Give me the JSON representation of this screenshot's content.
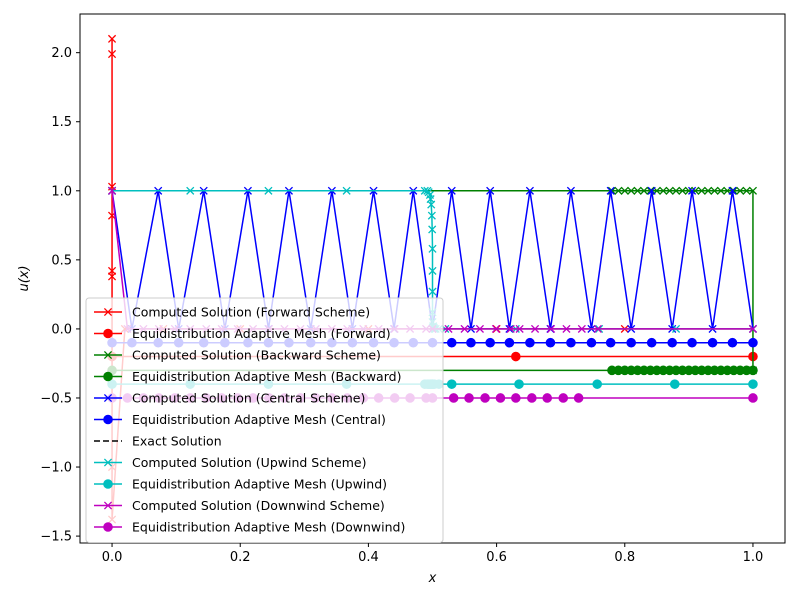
{
  "chart_data": {
    "type": "line",
    "xlabel": "x",
    "ylabel": "u(x)",
    "xlim": [
      -0.05,
      1.05
    ],
    "ylim": [
      -1.55,
      2.28
    ],
    "xticks": [
      0.0,
      0.2,
      0.4,
      0.6,
      0.8,
      1.0
    ],
    "xtick_labels": [
      "0.0",
      "0.2",
      "0.4",
      "0.6",
      "0.8",
      "1.0"
    ],
    "yticks": [
      -1.5,
      -1.0,
      -0.5,
      0.0,
      0.5,
      1.0,
      1.5,
      2.0
    ],
    "ytick_labels": [
      "−1.5",
      "−1.0",
      "−0.5",
      "0.0",
      "0.5",
      "1.0",
      "1.5",
      "2.0"
    ],
    "grid": false,
    "legend_position": "lower-left",
    "series": [
      {
        "name": "Computed Solution (Forward Scheme)",
        "color": "#ff0000",
        "marker": "x",
        "linestyle": "solid",
        "x": [
          0,
          0,
          0,
          0,
          0,
          0,
          0,
          0,
          0.02,
          0.08,
          0.2,
          0.4,
          0.6,
          0.8,
          1.0
        ],
        "y": [
          2.1,
          1.99,
          1.03,
          0.82,
          0.42,
          0.38,
          -1.0,
          -1.38,
          0.0,
          0.0,
          0.0,
          0.0,
          0.0,
          0.0,
          0.0
        ]
      },
      {
        "name": "Equidistribution Adaptive Mesh (Forward)",
        "color": "#ff0000",
        "marker": "o",
        "linestyle": "solid",
        "x": [
          0,
          0.63,
          1.0
        ],
        "y": [
          -0.2,
          -0.2,
          -0.2
        ]
      },
      {
        "name": "Computed Solution (Backward Scheme)",
        "color": "#008000",
        "marker": "x",
        "linestyle": "solid",
        "x": [
          0,
          0.78,
          0.79,
          0.8,
          0.81,
          0.82,
          0.83,
          0.84,
          0.85,
          0.86,
          0.87,
          0.88,
          0.89,
          0.9,
          0.91,
          0.92,
          0.93,
          0.94,
          0.95,
          0.96,
          0.97,
          0.98,
          0.99,
          1.0,
          1.0
        ],
        "y": [
          1.0,
          1.0,
          1.0,
          1.0,
          1.0,
          1.0,
          1.0,
          1.0,
          1.0,
          1.0,
          1.0,
          1.0,
          1.0,
          1.0,
          1.0,
          1.0,
          1.0,
          1.0,
          1.0,
          1.0,
          1.0,
          1.0,
          1.0,
          1.0,
          -0.3
        ]
      },
      {
        "name": "Equidistribution Adaptive Mesh (Backward)",
        "color": "#008000",
        "marker": "o",
        "linestyle": "solid",
        "x": [
          0,
          0.78,
          0.79,
          0.8,
          0.81,
          0.82,
          0.83,
          0.84,
          0.85,
          0.86,
          0.87,
          0.88,
          0.89,
          0.9,
          0.91,
          0.92,
          0.93,
          0.94,
          0.95,
          0.96,
          0.97,
          0.98,
          0.99,
          1.0
        ],
        "y": [
          -0.3,
          -0.3,
          -0.3,
          -0.3,
          -0.3,
          -0.3,
          -0.3,
          -0.3,
          -0.3,
          -0.3,
          -0.3,
          -0.3,
          -0.3,
          -0.3,
          -0.3,
          -0.3,
          -0.3,
          -0.3,
          -0.3,
          -0.3,
          -0.3,
          -0.3,
          -0.3,
          -0.3
        ]
      },
      {
        "name": "Computed Solution (Central Scheme)",
        "color": "#0000ff",
        "marker": "x",
        "linestyle": "solid",
        "x": [
          0,
          0.031,
          0.072,
          0.104,
          0.143,
          0.176,
          0.212,
          0.244,
          0.276,
          0.31,
          0.343,
          0.375,
          0.408,
          0.44,
          0.47,
          0.5,
          0.53,
          0.56,
          0.59,
          0.62,
          0.652,
          0.684,
          0.716,
          0.748,
          0.778,
          0.81,
          0.842,
          0.874,
          0.905,
          0.937,
          0.968,
          1.0
        ],
        "y": [
          1.0,
          0.0,
          1.0,
          0.0,
          1.0,
          0.0,
          1.0,
          0.0,
          1.0,
          0.0,
          1.0,
          0.0,
          1.0,
          0.0,
          1.0,
          0.0,
          1.0,
          0.0,
          1.0,
          0.0,
          1.0,
          0.0,
          1.0,
          0.0,
          1.0,
          0.0,
          1.0,
          0.0,
          1.0,
          0.0,
          1.0,
          0.0
        ]
      },
      {
        "name": "Equidistribution Adaptive Mesh (Central)",
        "color": "#0000ff",
        "marker": "o",
        "linestyle": "solid",
        "x": [
          0,
          0.031,
          0.072,
          0.104,
          0.143,
          0.176,
          0.212,
          0.244,
          0.276,
          0.31,
          0.343,
          0.375,
          0.408,
          0.44,
          0.47,
          0.5,
          0.53,
          0.56,
          0.59,
          0.62,
          0.652,
          0.684,
          0.716,
          0.748,
          0.778,
          0.81,
          0.842,
          0.874,
          0.905,
          0.937,
          0.968,
          1.0
        ],
        "y": [
          -0.1,
          -0.1,
          -0.1,
          -0.1,
          -0.1,
          -0.1,
          -0.1,
          -0.1,
          -0.1,
          -0.1,
          -0.1,
          -0.1,
          -0.1,
          -0.1,
          -0.1,
          -0.1,
          -0.1,
          -0.1,
          -0.1,
          -0.1,
          -0.1,
          -0.1,
          -0.1,
          -0.1,
          -0.1,
          -0.1,
          -0.1,
          -0.1,
          -0.1,
          -0.1,
          -0.1,
          -0.1
        ]
      },
      {
        "name": "Exact Solution",
        "color": "#000000",
        "marker": "none",
        "linestyle": "dashed",
        "x": [],
        "y": []
      },
      {
        "name": "Computed Solution (Upwind Scheme)",
        "color": "#00bfbf",
        "marker": "x",
        "linestyle": "solid",
        "x": [
          0,
          0.122,
          0.244,
          0.366,
          0.488,
          0.492,
          0.494,
          0.496,
          0.497,
          0.498,
          0.499,
          0.4995,
          0.5,
          0.5,
          0.5,
          0.5,
          0.5,
          0.501,
          0.502,
          0.503,
          0.505,
          0.51,
          0.52,
          0.63,
          0.76,
          0.88,
          1.0
        ],
        "y": [
          1.0,
          1.0,
          1.0,
          1.0,
          1.0,
          1.0,
          0.99,
          0.97,
          0.94,
          0.9,
          0.82,
          0.72,
          0.58,
          0.42,
          0.27,
          0.12,
          0.05,
          0.02,
          0.01,
          0.0,
          0.0,
          0.0,
          0.0,
          0.0,
          0.0,
          0.0,
          0.0
        ]
      },
      {
        "name": "Equidistribution Adaptive Mesh (Upwind)",
        "color": "#00bfbf",
        "marker": "o",
        "linestyle": "solid",
        "x": [
          0,
          0.122,
          0.244,
          0.366,
          0.488,
          0.492,
          0.494,
          0.496,
          0.497,
          0.498,
          0.499,
          0.4995,
          0.5,
          0.501,
          0.503,
          0.51,
          0.53,
          0.635,
          0.757,
          0.878,
          1.0
        ],
        "y": [
          -0.4,
          -0.4,
          -0.4,
          -0.4,
          -0.4,
          -0.4,
          -0.4,
          -0.4,
          -0.4,
          -0.4,
          -0.4,
          -0.4,
          -0.4,
          -0.4,
          -0.4,
          -0.4,
          -0.4,
          -0.4,
          -0.4,
          -0.4,
          -0.4
        ]
      },
      {
        "name": "Computed Solution (Downwind Scheme)",
        "color": "#bf00bf",
        "marker": "x",
        "linestyle": "solid",
        "x": [
          0,
          0.024,
          0.049,
          0.073,
          0.098,
          0.122,
          0.147,
          0.171,
          0.196,
          0.22,
          0.245,
          0.269,
          0.294,
          0.318,
          0.343,
          0.367,
          0.392,
          0.416,
          0.441,
          0.465,
          0.49,
          0.5,
          0.525,
          0.55,
          0.574,
          0.599,
          0.622,
          0.636,
          0.66,
          0.685,
          0.709,
          0.733,
          0.758,
          1.0
        ],
        "y": [
          1.0,
          0.0,
          0.0,
          0.0,
          0.0,
          0.0,
          0.0,
          0.0,
          0.0,
          0.0,
          0.0,
          0.0,
          0.0,
          0.0,
          0.0,
          0.0,
          0.0,
          0.0,
          0.0,
          0.0,
          0.0,
          0.0,
          0.0,
          0.0,
          0.0,
          0.0,
          0.0,
          0.0,
          0.0,
          0.0,
          0.0,
          0.0,
          0.0,
          0.0
        ]
      },
      {
        "name": "Equidistribution Adaptive Mesh (Downwind)",
        "color": "#bf00bf",
        "marker": "o",
        "linestyle": "solid",
        "x": [
          0,
          0.024,
          0.049,
          0.073,
          0.098,
          0.122,
          0.147,
          0.171,
          0.196,
          0.22,
          0.245,
          0.269,
          0.294,
          0.318,
          0.343,
          0.367,
          0.392,
          0.416,
          0.441,
          0.465,
          0.49,
          0.5,
          0.533,
          0.557,
          0.582,
          0.606,
          0.63,
          0.655,
          0.679,
          0.704,
          0.728,
          1.0
        ],
        "y": [
          -0.5,
          -0.5,
          -0.5,
          -0.5,
          -0.5,
          -0.5,
          -0.5,
          -0.5,
          -0.5,
          -0.5,
          -0.5,
          -0.5,
          -0.5,
          -0.5,
          -0.5,
          -0.5,
          -0.5,
          -0.5,
          -0.5,
          -0.5,
          -0.5,
          -0.5,
          -0.5,
          -0.5,
          -0.5,
          -0.5,
          -0.5,
          -0.5,
          -0.5,
          -0.5,
          -0.5,
          -0.5
        ]
      }
    ]
  }
}
